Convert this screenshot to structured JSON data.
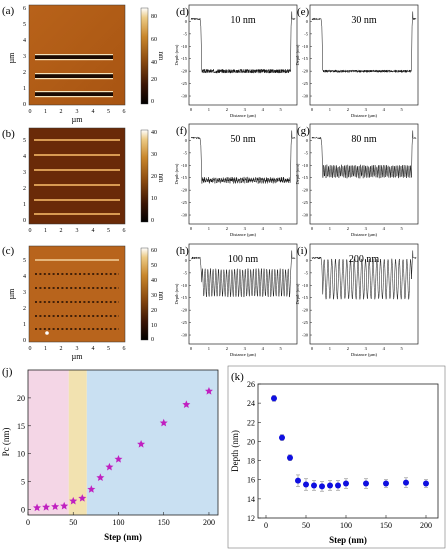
{
  "afm": [
    {
      "letter": "(a)",
      "cb_ticks": [
        "80",
        "60",
        "40",
        "20",
        "0"
      ],
      "cb_unit": "nm",
      "y_ticks": [
        "6",
        "5",
        "4",
        "3",
        "2",
        "1",
        "0"
      ],
      "x_ticks": [
        "0",
        "1",
        "2",
        "3",
        "4",
        "5",
        "6"
      ],
      "xlabel": "µm",
      "ylabel": "µm"
    },
    {
      "letter": "(b)",
      "cb_ticks": [
        "40",
        "30",
        "20",
        "10",
        "0"
      ],
      "cb_unit": "nm",
      "y_ticks": [
        "5",
        "4",
        "3",
        "2",
        "1",
        "0"
      ],
      "x_ticks": [
        "0",
        "1",
        "2",
        "3",
        "4",
        "5",
        "6"
      ],
      "xlabel": "",
      "ylabel": ""
    },
    {
      "letter": "(c)",
      "cb_ticks": [
        "60",
        "50",
        "40",
        "30",
        "20",
        "10",
        "0"
      ],
      "cb_unit": "nm",
      "y_ticks": [
        "5",
        "4",
        "3",
        "2",
        "1",
        "0"
      ],
      "x_ticks": [
        "0",
        "1",
        "2",
        "3",
        "4",
        "5",
        "6"
      ],
      "xlabel": "µm",
      "ylabel": "µm"
    }
  ],
  "profiles": [
    {
      "letter": "(d)",
      "label": "10 nm"
    },
    {
      "letter": "(e)",
      "label": "30 nm"
    },
    {
      "letter": "(f)",
      "label": "50 nm"
    },
    {
      "letter": "(g)",
      "label": "80 nm"
    },
    {
      "letter": "(h)",
      "label": "100 nm"
    },
    {
      "letter": "(i)",
      "label": "200 nm"
    }
  ],
  "profile_axes": {
    "y_ticks": [
      "0",
      "-5",
      "-10",
      "-15",
      "-20",
      "-25",
      "-30"
    ],
    "x_ticks": [
      "0",
      "1",
      "2",
      "3",
      "4",
      "5"
    ],
    "ylabel": "Depth (nm)",
    "xlabel": "Distance (µm)"
  },
  "chart_data": [
    {
      "type": "scatter",
      "letter": "(j)",
      "xlabel": "Step (nm)",
      "ylabel": "Pc (nm)",
      "xlim": [
        0,
        210
      ],
      "ylim": [
        -1,
        25
      ],
      "x_ticks": [
        "0",
        "50",
        "100",
        "150",
        "200"
      ],
      "y_ticks": [
        "0",
        "5",
        "10",
        "15",
        "20"
      ],
      "marker": "star",
      "marker_color": "#c020c0",
      "regions": [
        {
          "from": 0,
          "to": 45,
          "color": "#f4d6e6"
        },
        {
          "from": 45,
          "to": 65,
          "color": "#f2e2b0"
        },
        {
          "from": 65,
          "to": 210,
          "color": "#c9e0f2"
        }
      ],
      "x": [
        10,
        20,
        30,
        40,
        50,
        60,
        70,
        80,
        90,
        100,
        125,
        150,
        175,
        200
      ],
      "y": [
        0.3,
        0.4,
        0.5,
        0.6,
        1.5,
        2.0,
        3.6,
        5.7,
        7.6,
        9.0,
        11.7,
        15.5,
        18.8,
        21.2
      ]
    },
    {
      "type": "scatter",
      "letter": "(k)",
      "xlabel": "Step (nm)",
      "ylabel": "Depth (nm)",
      "xlim": [
        -10,
        215
      ],
      "ylim": [
        12,
        26
      ],
      "x_ticks": [
        "0",
        "50",
        "100",
        "150",
        "200"
      ],
      "y_ticks": [
        "12",
        "14",
        "16",
        "18",
        "20",
        "22",
        "24",
        "26"
      ],
      "marker": "circle",
      "marker_color": "#1010e0",
      "x": [
        10,
        20,
        30,
        40,
        50,
        60,
        70,
        80,
        90,
        100,
        125,
        150,
        175,
        200
      ],
      "y": [
        24.5,
        20.4,
        18.3,
        15.9,
        15.5,
        15.4,
        15.3,
        15.4,
        15.4,
        15.6,
        15.6,
        15.6,
        15.7,
        15.6
      ],
      "err": [
        0.3,
        0.3,
        0.3,
        0.6,
        0.6,
        0.5,
        0.5,
        0.5,
        0.5,
        0.5,
        0.5,
        0.4,
        0.5,
        0.4
      ]
    }
  ]
}
